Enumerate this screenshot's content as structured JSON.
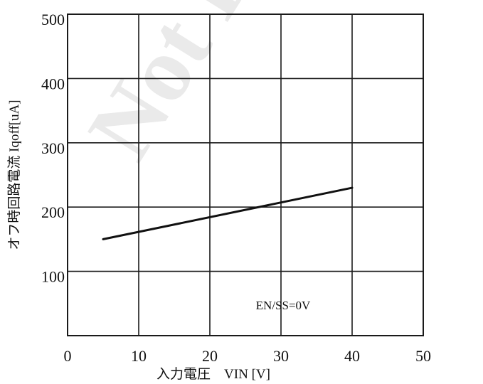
{
  "chart_data": {
    "type": "line",
    "title": "",
    "xlabel": "入力電圧　VIN [V]",
    "ylabel": "オフ時回路電流 Iqoff[uA]",
    "x_ticks": [
      0,
      10,
      20,
      30,
      40,
      50
    ],
    "y_ticks": [
      100,
      200,
      300,
      400,
      500
    ],
    "xlim": [
      0,
      50
    ],
    "ylim": [
      0,
      500
    ],
    "grid": true,
    "series": [
      {
        "x": [
          5,
          40
        ],
        "y": [
          150,
          230
        ]
      }
    ],
    "annotation": "EN/SS=0V",
    "watermark": "Not Re"
  }
}
